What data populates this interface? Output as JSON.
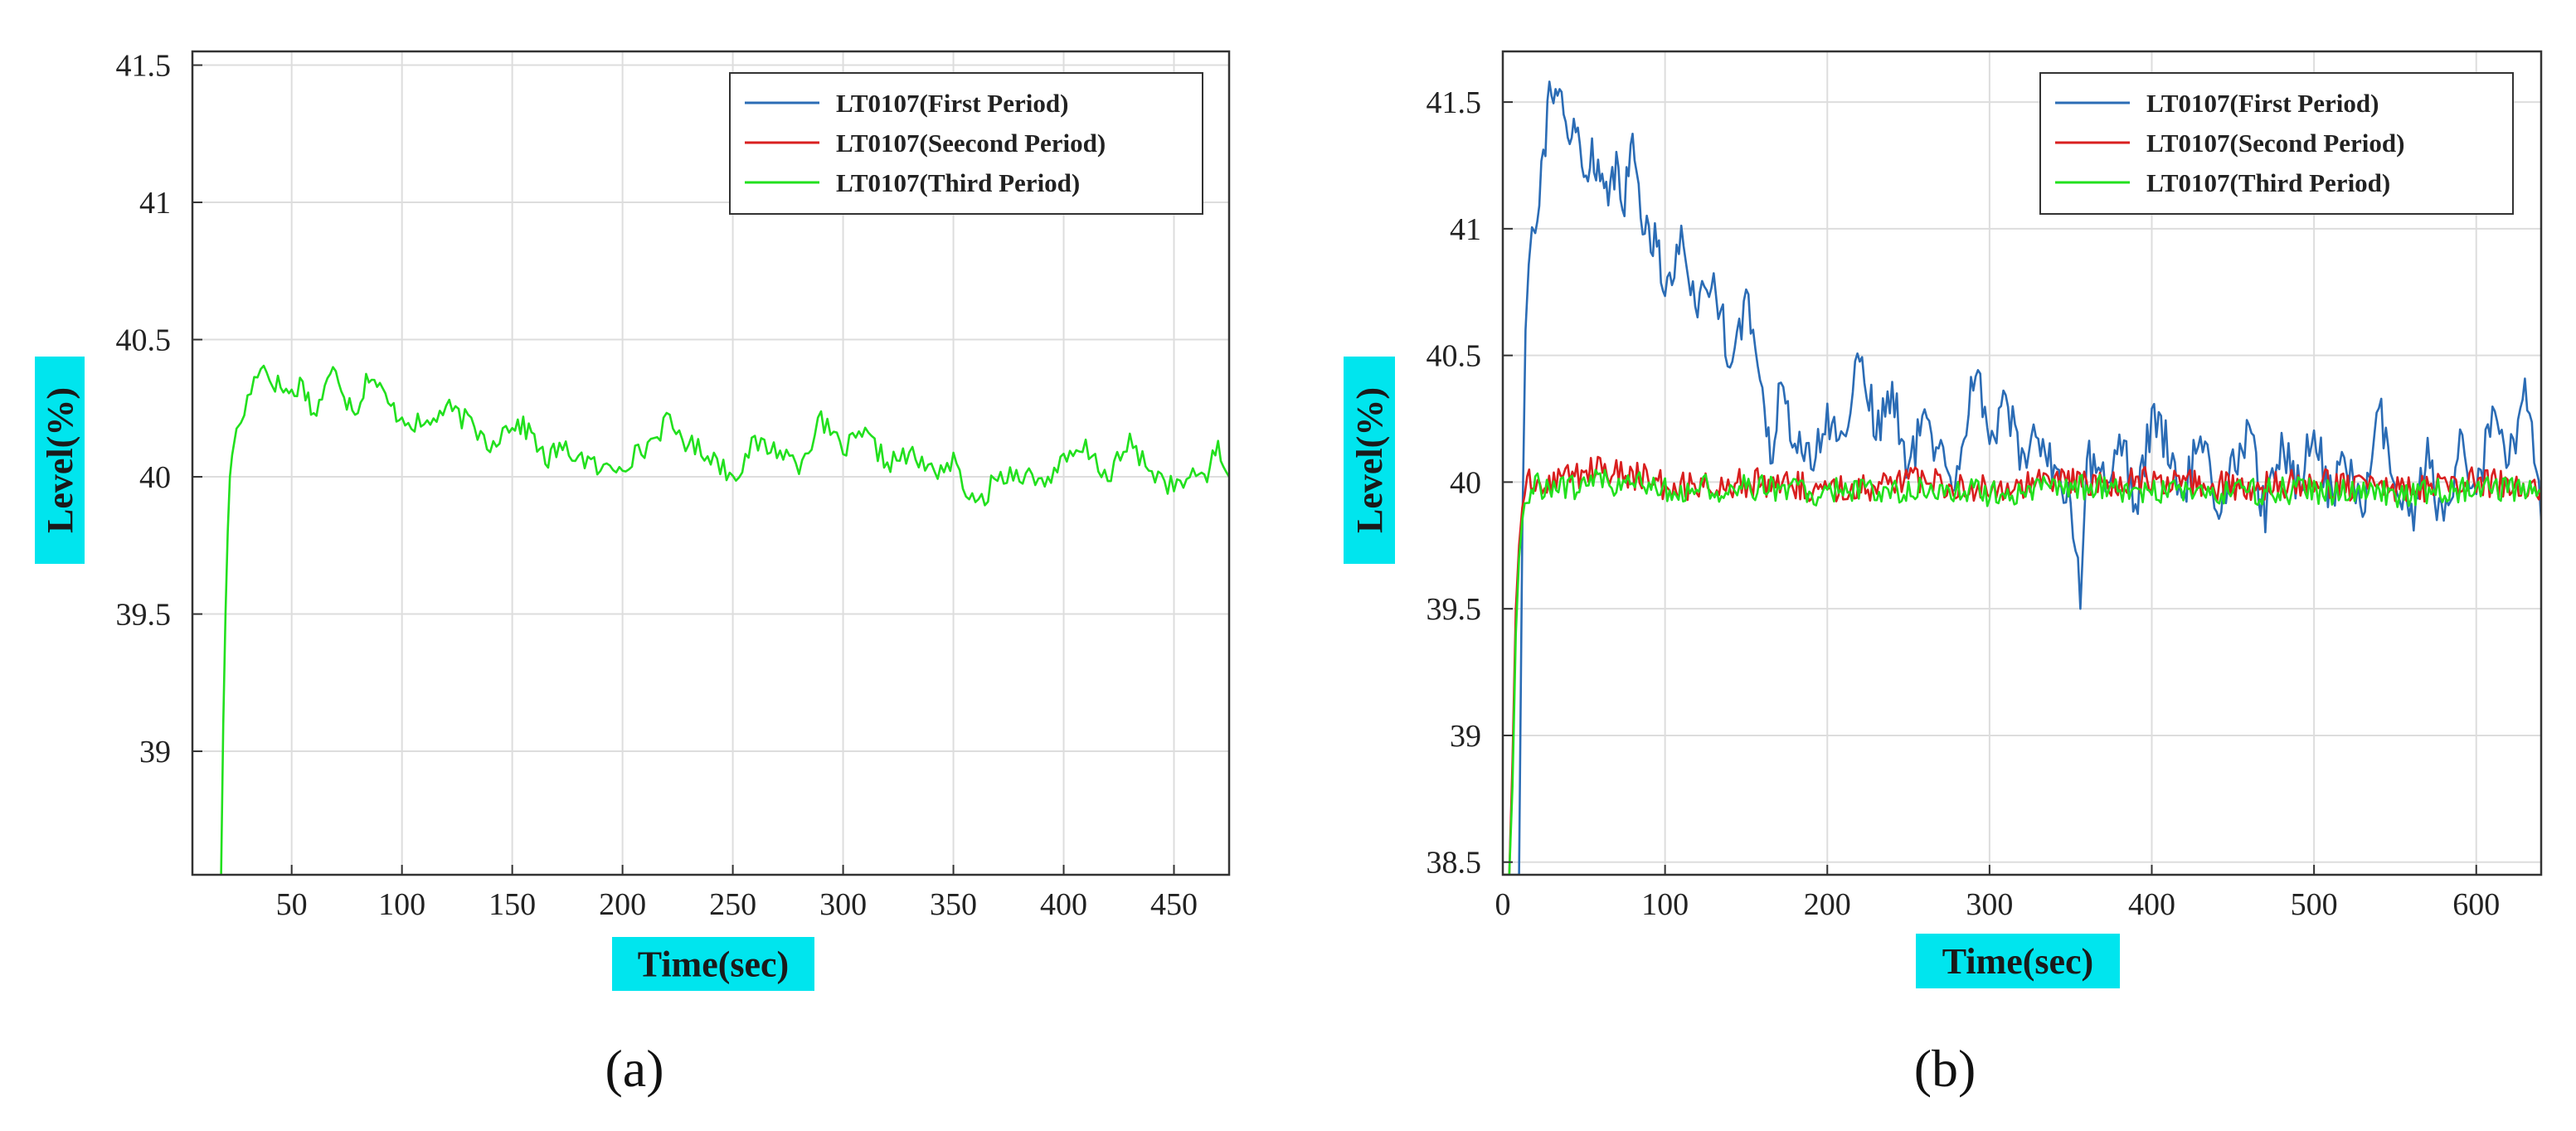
{
  "figure": {
    "panel_labels": [
      "(a)",
      "(b)"
    ],
    "colors": {
      "first_period": "#2b6cb5",
      "second_period": "#d91f1f",
      "third_period": "#22e01e",
      "label_highlight": "#00e5ee",
      "grid": "#dddddd",
      "axis": "#333333"
    }
  },
  "chart_data": [
    {
      "type": "line",
      "panel": "(a)",
      "xlabel": "Time(sec)",
      "ylabel": "Level(%)",
      "xlim": [
        5,
        475
      ],
      "ylim": [
        38.55,
        41.55
      ],
      "xticks": [
        50,
        100,
        150,
        200,
        250,
        300,
        350,
        400,
        450
      ],
      "yticks": [
        39,
        39.5,
        40,
        40.5,
        41,
        41.5
      ],
      "ytick_labels": [
        "39",
        "39.5",
        "40",
        "40.5",
        "41",
        "41.5"
      ],
      "grid": true,
      "legend": {
        "position": "top-right",
        "entries": [
          "LT0107(First Period)",
          "LT0107(Seecond Period)",
          "LT0107(Third Period)"
        ]
      },
      "series": [
        {
          "name": "LT0107(Third Period)",
          "color": "#22e01e",
          "x": [
            18,
            19,
            20,
            21,
            22,
            23,
            25,
            27,
            30,
            33,
            36,
            40,
            45,
            50,
            55,
            60,
            65,
            70,
            75,
            80,
            85,
            90,
            95,
            100,
            110,
            120,
            130,
            140,
            150,
            155,
            160,
            165,
            170,
            180,
            190,
            200,
            210,
            220,
            230,
            240,
            250,
            260,
            270,
            280,
            290,
            300,
            310,
            320,
            330,
            340,
            350,
            360,
            370,
            380,
            390,
            400,
            410,
            420,
            430,
            440,
            450,
            460,
            465,
            470,
            475
          ],
          "values": [
            38.55,
            39.1,
            39.5,
            39.8,
            40.0,
            40.1,
            40.15,
            40.2,
            40.28,
            40.35,
            40.42,
            40.36,
            40.33,
            40.3,
            40.35,
            40.22,
            40.32,
            40.4,
            40.28,
            40.25,
            40.38,
            40.32,
            40.25,
            40.22,
            40.18,
            40.25,
            40.2,
            40.12,
            40.2,
            40.18,
            40.15,
            40.05,
            40.1,
            40.08,
            40.02,
            40.05,
            40.1,
            40.2,
            40.12,
            40.08,
            40.0,
            40.12,
            40.1,
            40.05,
            40.2,
            40.1,
            40.15,
            40.05,
            40.08,
            40.02,
            40.05,
            39.88,
            40.0,
            40.02,
            39.98,
            40.05,
            40.1,
            40.0,
            40.12,
            40.02,
            39.96,
            40.0,
            40.02,
            40.1,
            40.0
          ],
          "noise": 0.04
        }
      ]
    },
    {
      "type": "line",
      "panel": "(b)",
      "xlabel": "Time(sec)",
      "ylabel": "Level(%)",
      "xlim": [
        0,
        640
      ],
      "ylim": [
        38.45,
        41.7
      ],
      "xticks": [
        0,
        100,
        200,
        300,
        400,
        500,
        600
      ],
      "yticks": [
        38.5,
        39,
        39.5,
        40,
        40.5,
        41,
        41.5
      ],
      "ytick_labels": [
        "38.5",
        "39",
        "39.5",
        "40",
        "40.5",
        "41",
        "41.5"
      ],
      "grid": true,
      "legend": {
        "position": "top-right",
        "entries": [
          "LT0107(First Period)",
          "LT0107(Second Period)",
          "LT0107(Third Period)"
        ]
      },
      "series": [
        {
          "name": "LT0107(First Period)",
          "color": "#2b6cb5",
          "x": [
            0,
            5,
            8,
            10,
            12,
            14,
            16,
            18,
            20,
            25,
            30,
            35,
            40,
            45,
            50,
            55,
            60,
            65,
            70,
            75,
            80,
            85,
            90,
            95,
            100,
            110,
            120,
            130,
            140,
            150,
            160,
            165,
            170,
            180,
            190,
            200,
            210,
            220,
            230,
            240,
            250,
            260,
            270,
            280,
            290,
            300,
            310,
            320,
            330,
            340,
            350,
            356,
            360,
            370,
            380,
            390,
            400,
            410,
            420,
            430,
            440,
            450,
            460,
            470,
            480,
            490,
            500,
            510,
            520,
            530,
            540,
            550,
            560,
            570,
            580,
            590,
            600,
            610,
            620,
            630,
            640
          ],
          "values": [
            38.45,
            38.45,
            38.45,
            38.45,
            39.8,
            40.6,
            40.9,
            41.0,
            41.05,
            41.3,
            41.6,
            41.5,
            41.35,
            41.4,
            41.2,
            41.3,
            41.25,
            41.05,
            41.3,
            41.1,
            41.35,
            41.1,
            40.95,
            41.0,
            40.75,
            40.95,
            40.7,
            40.8,
            40.5,
            40.7,
            40.4,
            40.1,
            40.35,
            40.2,
            40.05,
            40.25,
            40.15,
            40.55,
            40.2,
            40.35,
            40.05,
            40.25,
            40.1,
            40.0,
            40.45,
            40.2,
            40.3,
            40.1,
            40.2,
            40.05,
            39.95,
            39.5,
            40.1,
            40.0,
            40.2,
            39.9,
            40.25,
            40.15,
            39.95,
            40.2,
            39.9,
            40.05,
            40.2,
            39.85,
            40.15,
            40.0,
            40.2,
            39.95,
            40.1,
            39.85,
            40.3,
            39.95,
            39.85,
            40.1,
            39.8,
            40.15,
            39.95,
            40.25,
            40.05,
            40.4,
            39.85
          ],
          "noise": 0.09
        },
        {
          "name": "LT0107(Second Period)",
          "color": "#d91f1f",
          "x": [
            0,
            4,
            6,
            8,
            10,
            12,
            15,
            20,
            40,
            60,
            80,
            100,
            150,
            200,
            250,
            300,
            350,
            400,
            450,
            500,
            550,
            600,
            640
          ],
          "values": [
            38.45,
            38.45,
            38.9,
            39.5,
            39.75,
            39.9,
            40.0,
            40.0,
            40.02,
            40.05,
            40.03,
            39.98,
            40.0,
            39.97,
            40.0,
            39.98,
            40.0,
            40.0,
            39.98,
            40.0,
            39.97,
            40.0,
            39.98
          ],
          "noise": 0.06
        },
        {
          "name": "LT0107(Third Period)",
          "color": "#22e01e",
          "x": [
            0,
            4,
            6,
            8,
            10,
            12,
            15,
            20,
            40,
            60,
            80,
            100,
            150,
            200,
            250,
            300,
            350,
            400,
            450,
            500,
            550,
            600,
            640
          ],
          "values": [
            38.45,
            38.45,
            38.8,
            39.4,
            39.7,
            39.85,
            39.95,
            39.98,
            39.98,
            40.0,
            40.0,
            39.97,
            39.98,
            39.96,
            39.97,
            39.96,
            39.98,
            39.97,
            39.96,
            39.97,
            39.95,
            39.97,
            39.96
          ],
          "noise": 0.055
        }
      ]
    }
  ]
}
